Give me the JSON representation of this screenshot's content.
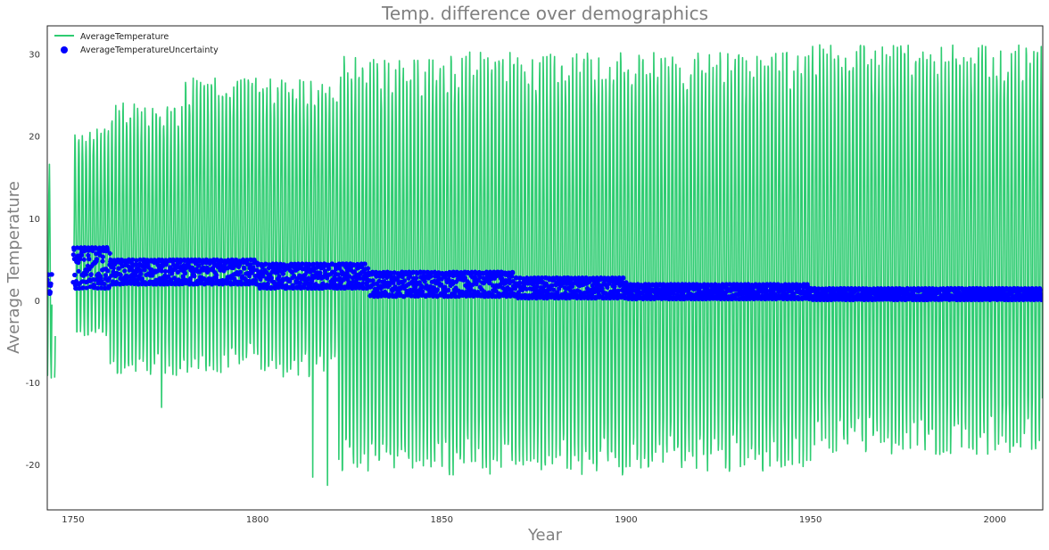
{
  "chart_data": {
    "type": "line",
    "title": "Temp. difference over demographics",
    "xlabel": "Year",
    "ylabel": "Average Temperature",
    "xlim": [
      1743,
      2013
    ],
    "ylim": [
      -25.5,
      33.5
    ],
    "xticks": [
      1750,
      1800,
      1850,
      1900,
      1950,
      2000
    ],
    "yticks": [
      -20,
      -10,
      0,
      10,
      20,
      30
    ],
    "grid": false,
    "legend_position": "top-left",
    "series": [
      {
        "name": "AverageTemperature",
        "kind": "line",
        "color": "#2ecc71",
        "pattern": "seasonal oscillation, one cycle per year",
        "x_range": [
          1743,
          2013
        ],
        "x_gaps": [
          [
            1744.3,
            1745.0
          ],
          [
            1745.2,
            1750.2
          ]
        ],
        "segments": [
          {
            "x": [
              1743,
              1750
            ],
            "mean": 8.5,
            "summer_max": 16,
            "winter_min": -9
          },
          {
            "x": [
              1750,
              1760
            ],
            "mean": 9.0,
            "summer_max": 20,
            "winter_min": -4
          },
          {
            "x": [
              1760,
              1780
            ],
            "mean": 9.0,
            "summer_max": 23,
            "winter_min": -8
          },
          {
            "x": [
              1780,
              1800
            ],
            "mean": 9.0,
            "summer_max": 26,
            "winter_min": -7.5
          },
          {
            "x": [
              1800,
              1822
            ],
            "mean": 9.0,
            "summer_max": 26,
            "winter_min": -8
          },
          {
            "x": [
              1822,
              1850
            ],
            "mean": 9.0,
            "summer_max": 28,
            "winter_min": -19
          },
          {
            "x": [
              1850,
              1900
            ],
            "mean": 9.5,
            "summer_max": 28.5,
            "winter_min": -19.5
          },
          {
            "x": [
              1900,
              1950
            ],
            "mean": 10.0,
            "summer_max": 28.5,
            "winter_min": -19
          },
          {
            "x": [
              1950,
              2013
            ],
            "mean": 10.5,
            "summer_max": 29.5,
            "winter_min": -17
          }
        ],
        "notable_points": [
          {
            "x": 1774,
            "y": -13
          },
          {
            "x": 1815,
            "y": -21.5
          },
          {
            "x": 1819,
            "y": -22.5
          }
        ]
      },
      {
        "name": "AverageTemperatureUncertainty",
        "kind": "scatter",
        "color": "#0000ff",
        "x_range": [
          1743,
          2013
        ],
        "x_gaps": [
          [
            1744.3,
            1750.0
          ]
        ],
        "segments": [
          {
            "x": [
              1743,
              1750
            ],
            "low": 0.8,
            "high": 3.2
          },
          {
            "x": [
              1750,
              1760
            ],
            "low": 1.5,
            "high": 6.5
          },
          {
            "x": [
              1760,
              1800
            ],
            "low": 2.0,
            "high": 5.0
          },
          {
            "x": [
              1800,
              1830
            ],
            "low": 1.5,
            "high": 4.5
          },
          {
            "x": [
              1830,
              1870
            ],
            "low": 0.5,
            "high": 3.5
          },
          {
            "x": [
              1870,
              1900
            ],
            "low": 0.3,
            "high": 2.8
          },
          {
            "x": [
              1900,
              1950
            ],
            "low": 0.2,
            "high": 2.0
          },
          {
            "x": [
              1950,
              2013
            ],
            "low": 0.1,
            "high": 1.5
          }
        ]
      }
    ]
  }
}
